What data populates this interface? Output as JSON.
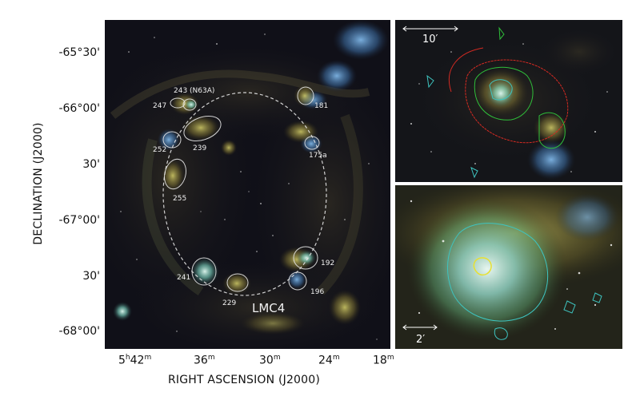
{
  "axes": {
    "xlabel": "RIGHT ASCENSION (J2000)",
    "ylabel": "DECLINATION (J2000)",
    "y_ticks": [
      "-65°30'",
      "-66°00'",
      "30'",
      "-67°00'",
      "30'",
      "-68°00'"
    ],
    "x_ticks": [
      {
        "main": "5",
        "sup1": "h",
        "main2": "42",
        "sup2": "m"
      },
      {
        "main": "36",
        "sup1": "m"
      },
      {
        "main": "30",
        "sup1": "m"
      },
      {
        "main": "24",
        "sup1": "m"
      },
      {
        "main": "18",
        "sup1": "m"
      }
    ]
  },
  "main_panel": {
    "superbubble_label": "LMC4",
    "regions": [
      {
        "id": "243 (N63A)"
      },
      {
        "id": "247"
      },
      {
        "id": "239"
      },
      {
        "id": "252"
      },
      {
        "id": "255"
      },
      {
        "id": "181"
      },
      {
        "id": "175a"
      },
      {
        "id": "192"
      },
      {
        "id": "196"
      },
      {
        "id": "241"
      },
      {
        "id": "229"
      }
    ]
  },
  "zoom_panels": {
    "top_scale_label": "10′",
    "bottom_scale_label": "2′"
  },
  "colors": {
    "contour_red": "#d42a22",
    "contour_green": "#2fbf3a",
    "contour_cyan": "#3ec4c0",
    "contour_yellow": "#e8e030",
    "region_outline": "#e6e6e6"
  }
}
